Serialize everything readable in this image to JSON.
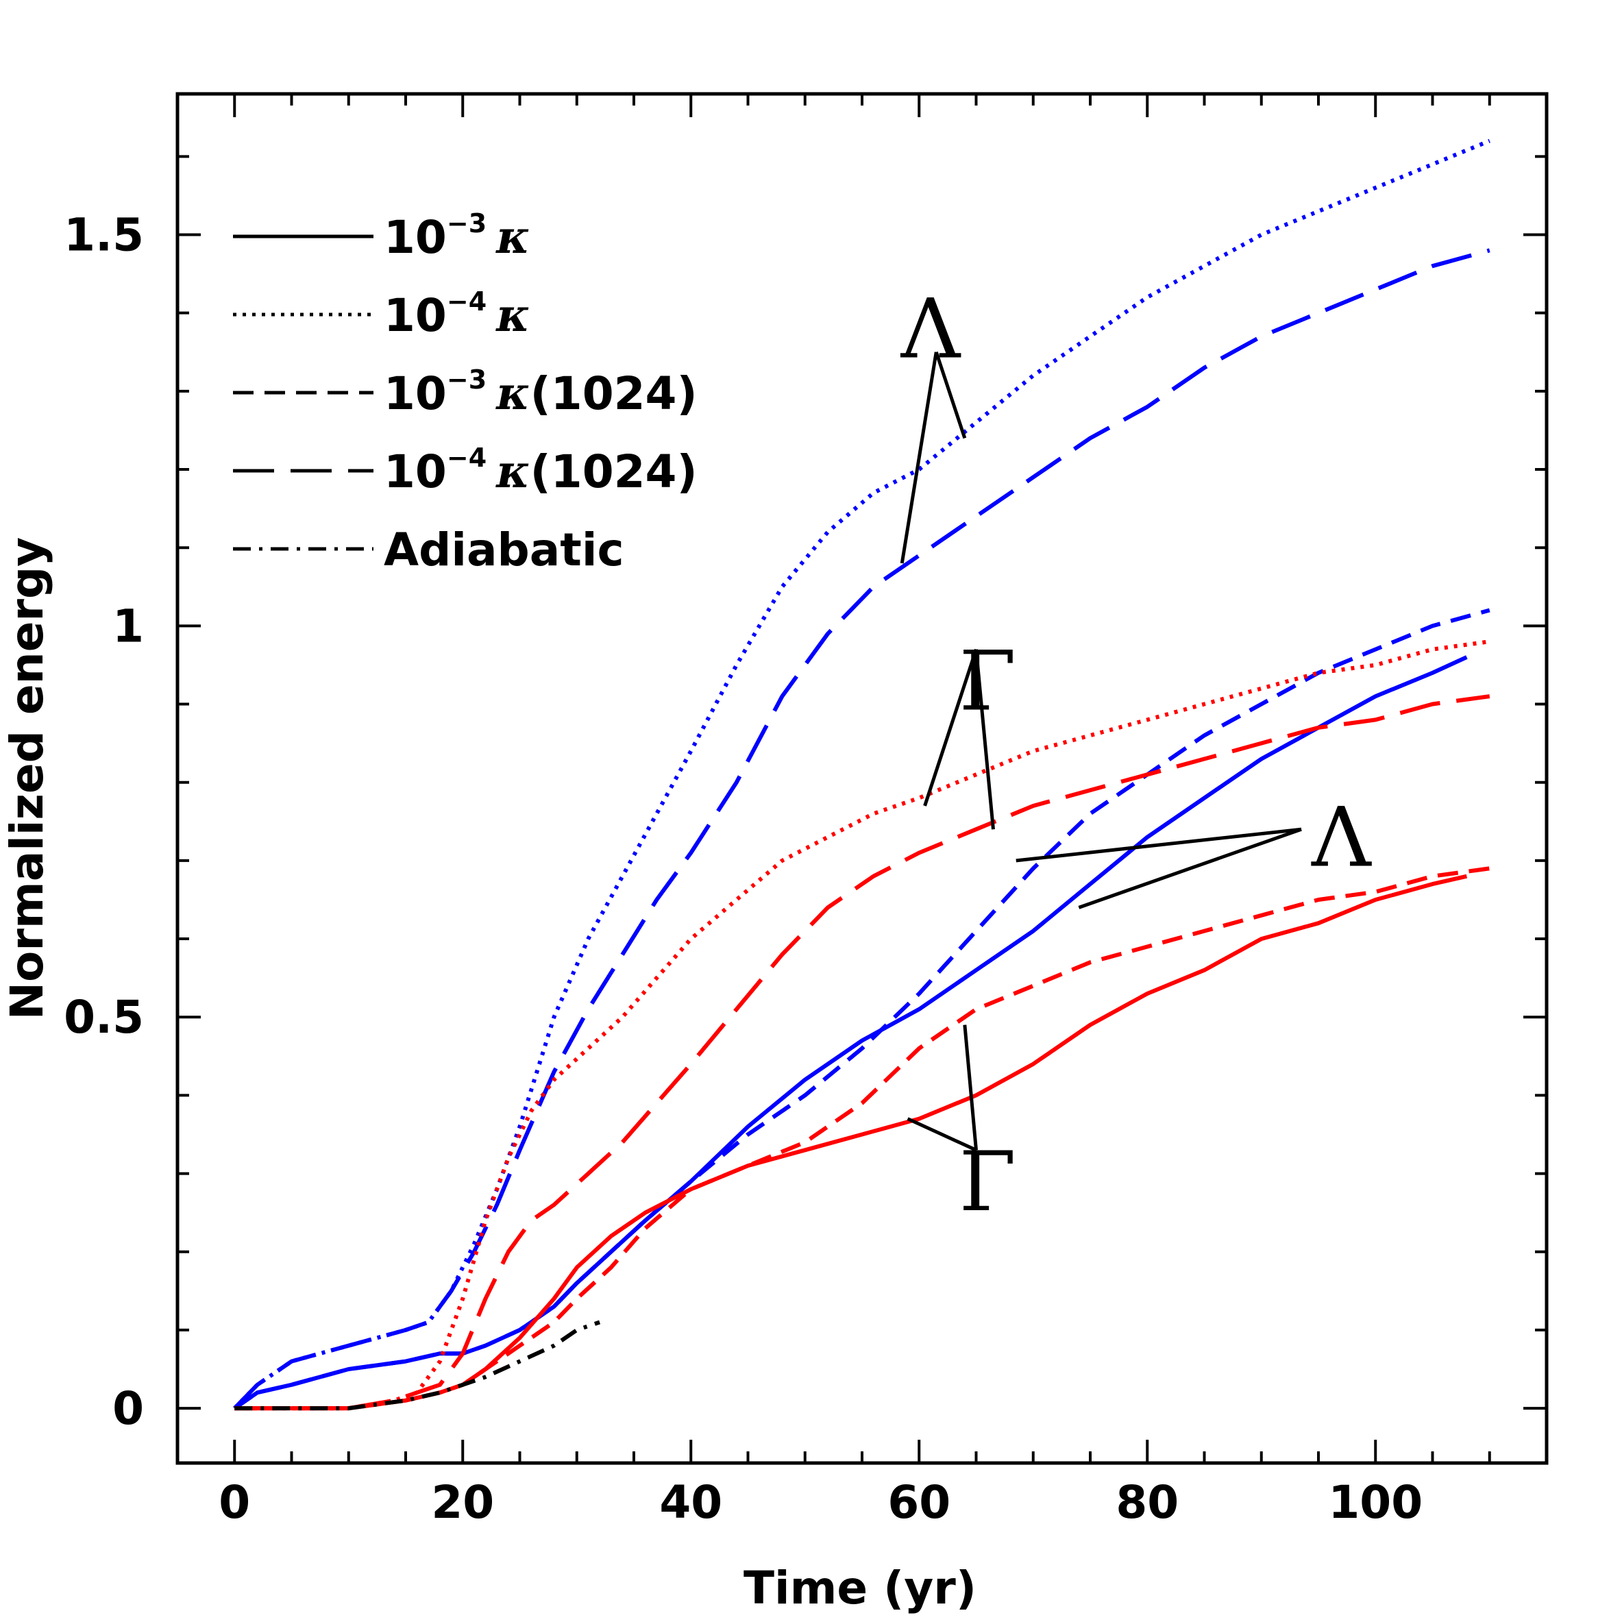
{
  "chart_data": {
    "type": "line",
    "title": "",
    "xlabel": "Time (yr)",
    "ylabel": "Normalized energy",
    "xlim": [
      -5,
      115
    ],
    "ylim": [
      -0.07,
      1.68
    ],
    "xticks": [
      0,
      20,
      40,
      60,
      80,
      100
    ],
    "xtick_labels": [
      "0",
      "20",
      "40",
      "60",
      "80",
      "100"
    ],
    "yticks": [
      0,
      0.5,
      1,
      1.5
    ],
    "ytick_labels": [
      "0",
      "0.5",
      "1",
      "1.5"
    ],
    "grid": false,
    "legend_position": "top-left",
    "legend": [
      {
        "base": "10",
        "sup": "-3",
        "label": "κ",
        "suffix": "",
        "style": "solid"
      },
      {
        "base": "10",
        "sup": "-4",
        "label": "κ",
        "suffix": "",
        "style": "dotted"
      },
      {
        "base": "10",
        "sup": "-3",
        "label": "κ",
        "suffix": "(1024)",
        "style": "short-dash"
      },
      {
        "base": "10",
        "sup": "-4",
        "label": "κ",
        "suffix": "(1024)",
        "style": "long-dash"
      },
      {
        "base": "",
        "sup": "",
        "label": "Adiabatic",
        "suffix": "",
        "style": "dash-dot"
      }
    ],
    "colors": {
      "lambda": "#0000ff",
      "gamma": "#ff0000",
      "adiabatic": "#000000",
      "axis": "#000000"
    },
    "series": [
      {
        "name": "Lambda 10^-4 kappa",
        "color": "#0000ff",
        "style": "dotted",
        "x": [
          0,
          2,
          5,
          10,
          15,
          17,
          19,
          21,
          23,
          25,
          28,
          31,
          34,
          37,
          40,
          44,
          48,
          52,
          56,
          60,
          65,
          70,
          75,
          80,
          85,
          90,
          95,
          100,
          105,
          110
        ],
        "y": [
          0,
          0.03,
          0.06,
          0.08,
          0.1,
          0.11,
          0.15,
          0.21,
          0.28,
          0.36,
          0.5,
          0.6,
          0.68,
          0.76,
          0.84,
          0.95,
          1.05,
          1.12,
          1.17,
          1.2,
          1.26,
          1.32,
          1.37,
          1.42,
          1.46,
          1.5,
          1.53,
          1.56,
          1.59,
          1.62
        ]
      },
      {
        "name": "Lambda 10^-4 kappa (1024)",
        "color": "#0000ff",
        "style": "long-dash",
        "x": [
          0,
          2,
          5,
          10,
          15,
          17,
          19,
          21,
          23,
          25,
          28,
          31,
          34,
          37,
          40,
          44,
          48,
          52,
          56,
          60,
          65,
          70,
          75,
          80,
          85,
          90,
          95,
          100,
          105,
          110
        ],
        "y": [
          0,
          0.03,
          0.06,
          0.08,
          0.1,
          0.11,
          0.15,
          0.2,
          0.26,
          0.33,
          0.43,
          0.51,
          0.58,
          0.65,
          0.71,
          0.8,
          0.91,
          0.99,
          1.05,
          1.09,
          1.14,
          1.19,
          1.24,
          1.28,
          1.33,
          1.37,
          1.4,
          1.43,
          1.46,
          1.48
        ]
      },
      {
        "name": "Lambda 10^-3 kappa (1024)",
        "color": "#0000ff",
        "style": "short-dash",
        "x": [
          0,
          2,
          5,
          10,
          15,
          18,
          20,
          22,
          25,
          28,
          30,
          33,
          36,
          40,
          45,
          50,
          55,
          60,
          65,
          70,
          75,
          80,
          85,
          90,
          95,
          100,
          105,
          110
        ],
        "y": [
          0,
          0.02,
          0.03,
          0.05,
          0.06,
          0.07,
          0.07,
          0.08,
          0.1,
          0.13,
          0.16,
          0.2,
          0.24,
          0.29,
          0.35,
          0.4,
          0.46,
          0.53,
          0.61,
          0.69,
          0.76,
          0.81,
          0.86,
          0.9,
          0.94,
          0.97,
          1.0,
          1.02
        ]
      },
      {
        "name": "Lambda 10^-3 kappa",
        "color": "#0000ff",
        "style": "solid",
        "x": [
          0,
          2,
          5,
          10,
          15,
          18,
          20,
          22,
          25,
          28,
          30,
          33,
          36,
          40,
          45,
          50,
          55,
          60,
          65,
          70,
          75,
          80,
          85,
          90,
          95,
          100,
          105,
          108
        ],
        "y": [
          0,
          0.02,
          0.03,
          0.05,
          0.06,
          0.07,
          0.07,
          0.08,
          0.1,
          0.13,
          0.16,
          0.2,
          0.24,
          0.29,
          0.36,
          0.42,
          0.47,
          0.51,
          0.56,
          0.61,
          0.67,
          0.73,
          0.78,
          0.83,
          0.87,
          0.91,
          0.94,
          0.96
        ]
      },
      {
        "name": "Gamma 10^-4 kappa",
        "color": "#ff0000",
        "style": "dotted",
        "x": [
          0,
          5,
          10,
          14,
          16,
          17,
          18,
          19,
          20,
          21,
          22,
          24,
          26,
          28,
          31,
          34,
          37,
          40,
          44,
          48,
          52,
          56,
          60,
          65,
          70,
          75,
          80,
          85,
          90,
          95,
          100,
          105,
          110
        ],
        "y": [
          0,
          0,
          0,
          0.01,
          0.02,
          0.04,
          0.06,
          0.1,
          0.14,
          0.19,
          0.24,
          0.32,
          0.38,
          0.42,
          0.46,
          0.5,
          0.55,
          0.6,
          0.65,
          0.7,
          0.73,
          0.76,
          0.78,
          0.81,
          0.84,
          0.86,
          0.88,
          0.9,
          0.92,
          0.94,
          0.95,
          0.97,
          0.98
        ]
      },
      {
        "name": "Gamma 10^-4 kappa (1024)",
        "color": "#ff0000",
        "style": "long-dash",
        "x": [
          0,
          5,
          10,
          14,
          16,
          18,
          20,
          22,
          24,
          26,
          28,
          31,
          34,
          37,
          40,
          44,
          48,
          52,
          56,
          60,
          65,
          70,
          75,
          80,
          85,
          90,
          95,
          100,
          105,
          110
        ],
        "y": [
          0,
          0,
          0,
          0.01,
          0.02,
          0.03,
          0.07,
          0.14,
          0.2,
          0.24,
          0.26,
          0.3,
          0.34,
          0.39,
          0.44,
          0.51,
          0.58,
          0.64,
          0.68,
          0.71,
          0.74,
          0.77,
          0.79,
          0.81,
          0.83,
          0.85,
          0.87,
          0.88,
          0.9,
          0.91
        ]
      },
      {
        "name": "Gamma 10^-3 kappa (1024)",
        "color": "#ff0000",
        "style": "short-dash",
        "x": [
          0,
          5,
          10,
          15,
          18,
          20,
          22,
          25,
          28,
          30,
          33,
          36,
          40,
          45,
          50,
          55,
          60,
          65,
          70,
          75,
          80,
          85,
          90,
          95,
          100,
          105,
          110
        ],
        "y": [
          0,
          0,
          0,
          0.01,
          0.02,
          0.03,
          0.05,
          0.08,
          0.11,
          0.14,
          0.18,
          0.23,
          0.28,
          0.31,
          0.34,
          0.39,
          0.46,
          0.51,
          0.54,
          0.57,
          0.59,
          0.61,
          0.63,
          0.65,
          0.66,
          0.68,
          0.69
        ]
      },
      {
        "name": "Gamma 10^-3 kappa",
        "color": "#ff0000",
        "style": "solid",
        "x": [
          0,
          5,
          10,
          15,
          18,
          20,
          22,
          25,
          28,
          30,
          33,
          36,
          40,
          45,
          50,
          55,
          60,
          65,
          70,
          75,
          80,
          85,
          90,
          95,
          100,
          105,
          108
        ],
        "y": [
          0,
          0,
          0,
          0.01,
          0.02,
          0.03,
          0.05,
          0.09,
          0.14,
          0.18,
          0.22,
          0.25,
          0.28,
          0.31,
          0.33,
          0.35,
          0.37,
          0.4,
          0.44,
          0.49,
          0.53,
          0.56,
          0.6,
          0.62,
          0.65,
          0.67,
          0.68
        ]
      },
      {
        "name": "Adiabatic",
        "color": "#000000",
        "style": "dash-dot",
        "x": [
          0,
          5,
          10,
          15,
          18,
          20,
          22,
          25,
          28,
          30,
          32
        ],
        "y": [
          0,
          0,
          0,
          0.01,
          0.02,
          0.03,
          0.04,
          0.06,
          0.08,
          0.1,
          0.11
        ]
      }
    ],
    "annotations": [
      {
        "symbol": "Λ",
        "text_pos": [
          61,
          1.38
        ],
        "apex": [
          61.5,
          1.35
        ],
        "targets": [
          [
            58.5,
            1.08
          ],
          [
            64,
            1.24
          ]
        ]
      },
      {
        "symbol": "Γ",
        "text_pos": [
          66,
          0.93
        ],
        "apex": [
          65,
          0.97
        ],
        "targets": [
          [
            60.5,
            0.77
          ],
          [
            66.5,
            0.74
          ]
        ]
      },
      {
        "symbol": "Λ",
        "text_pos": [
          97,
          0.73
        ],
        "apex": [
          93.5,
          0.74
        ],
        "targets": [
          [
            68.5,
            0.7
          ],
          [
            74,
            0.64
          ]
        ]
      },
      {
        "symbol": "Γ",
        "text_pos": [
          66,
          0.29
        ],
        "apex": [
          65,
          0.33
        ],
        "targets": [
          [
            59,
            0.37
          ],
          [
            64,
            0.49
          ]
        ]
      }
    ]
  }
}
